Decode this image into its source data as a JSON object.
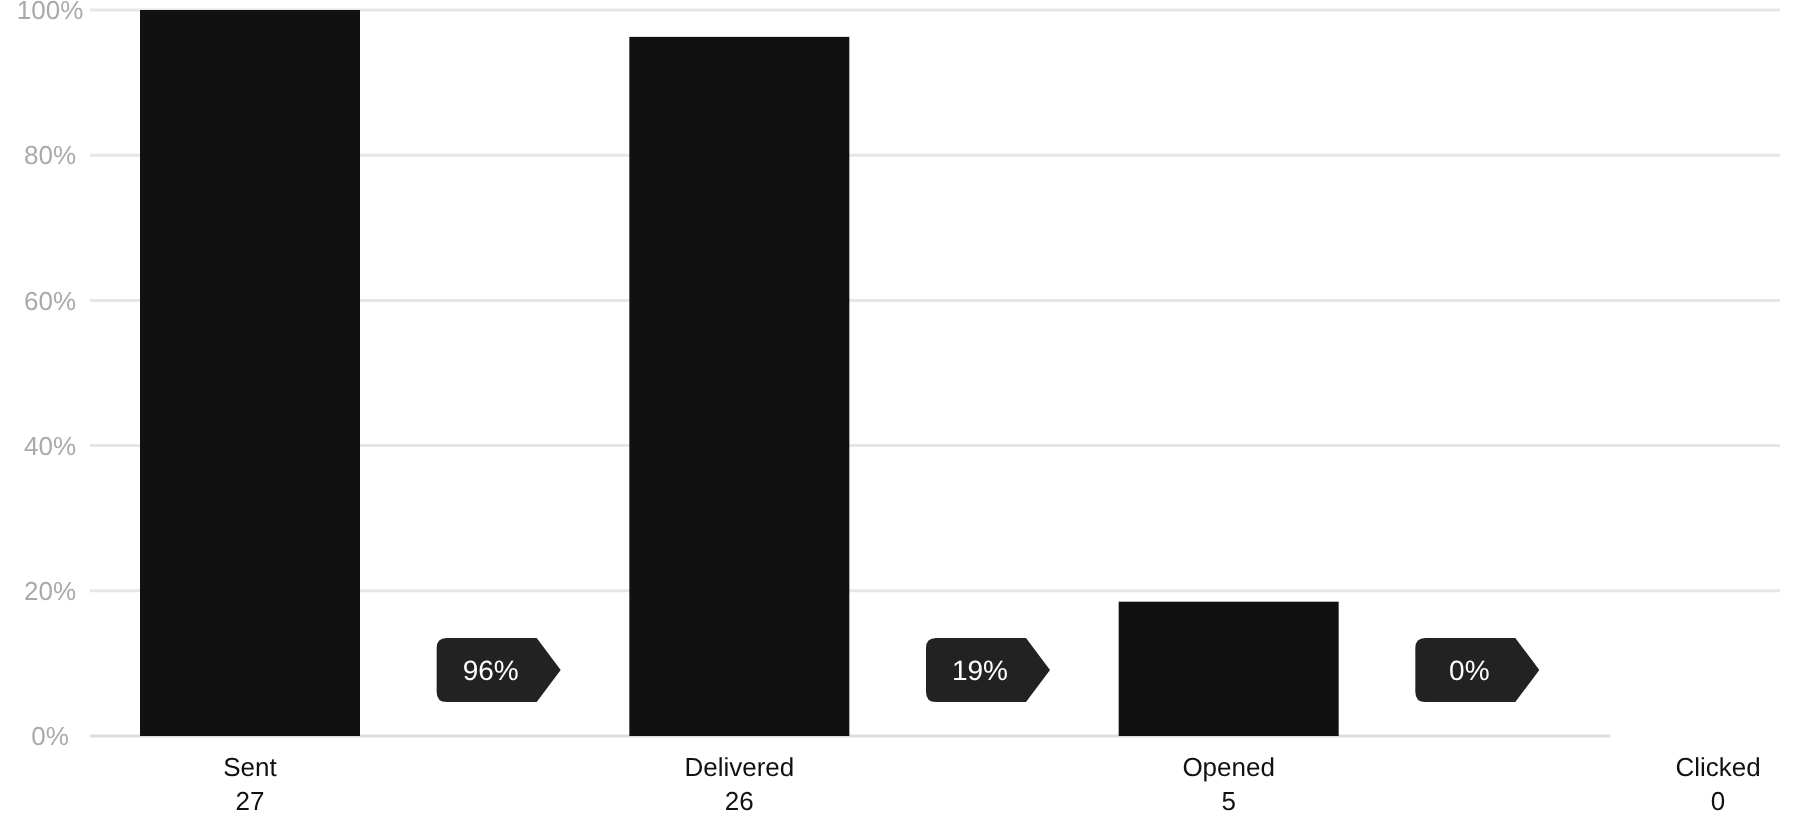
{
  "chart_data": {
    "type": "bar",
    "categories": [
      "Sent\n27",
      "Delivered\n26",
      "Opened\n5",
      "Clicked\n0"
    ],
    "values": [
      100,
      96.3,
      18.5,
      0
    ],
    "color": "#111111",
    "ylim": [
      0,
      100
    ],
    "yticks": [
      {
        "value": 0,
        "label": "0%"
      },
      {
        "value": 20,
        "label": "20%"
      },
      {
        "value": 40,
        "label": "40%"
      },
      {
        "value": 60,
        "label": "60%"
      },
      {
        "value": 80,
        "label": "80%"
      },
      {
        "value": 100,
        "label": "100%"
      }
    ],
    "grid": "y",
    "annotations": [
      "96%",
      "19%",
      "0%"
    ]
  }
}
